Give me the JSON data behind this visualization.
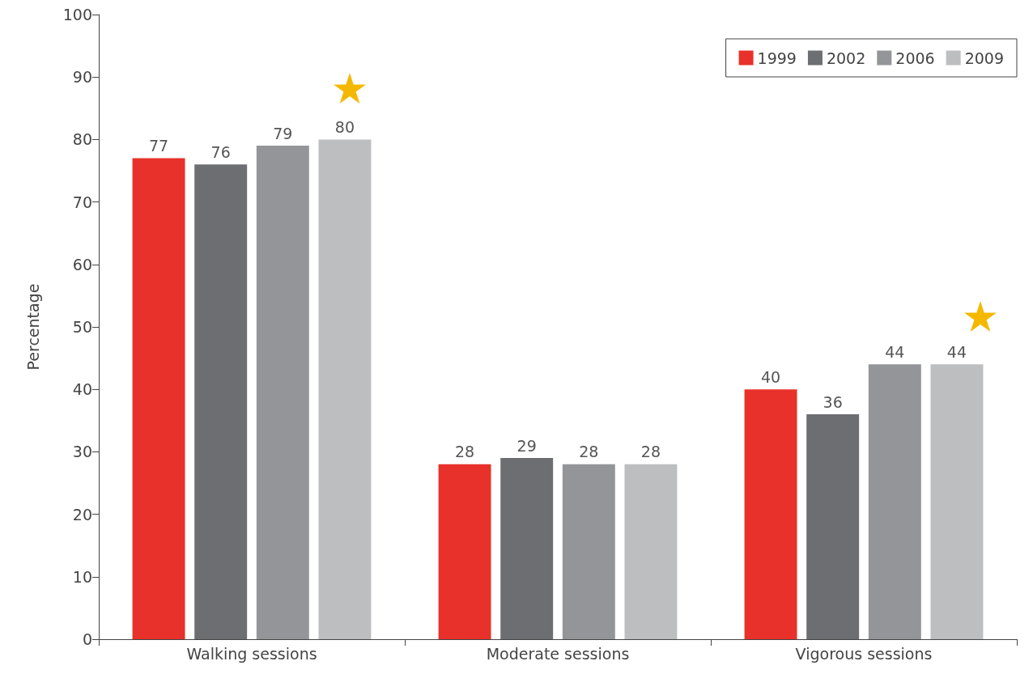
{
  "chart_data": {
    "type": "bar",
    "ylabel": "Percentage",
    "categories": [
      "Walking sessions",
      "Moderate sessions",
      "Vigorous sessions"
    ],
    "series": [
      {
        "name": "1999",
        "color": "#e8312a",
        "values": [
          77,
          28,
          40
        ]
      },
      {
        "name": "2002",
        "color": "#6d6e71",
        "values": [
          76,
          29,
          36
        ]
      },
      {
        "name": "2006",
        "color": "#939598",
        "values": [
          79,
          28,
          44
        ]
      },
      {
        "name": "2009",
        "color": "#bcbec0",
        "values": [
          80,
          28,
          44
        ]
      }
    ],
    "ylim": [
      0,
      100
    ],
    "yticks": [
      0,
      10,
      20,
      30,
      40,
      50,
      60,
      70,
      80,
      90,
      100
    ],
    "grid": false,
    "legend": "top right",
    "data_labels": true
  }
}
